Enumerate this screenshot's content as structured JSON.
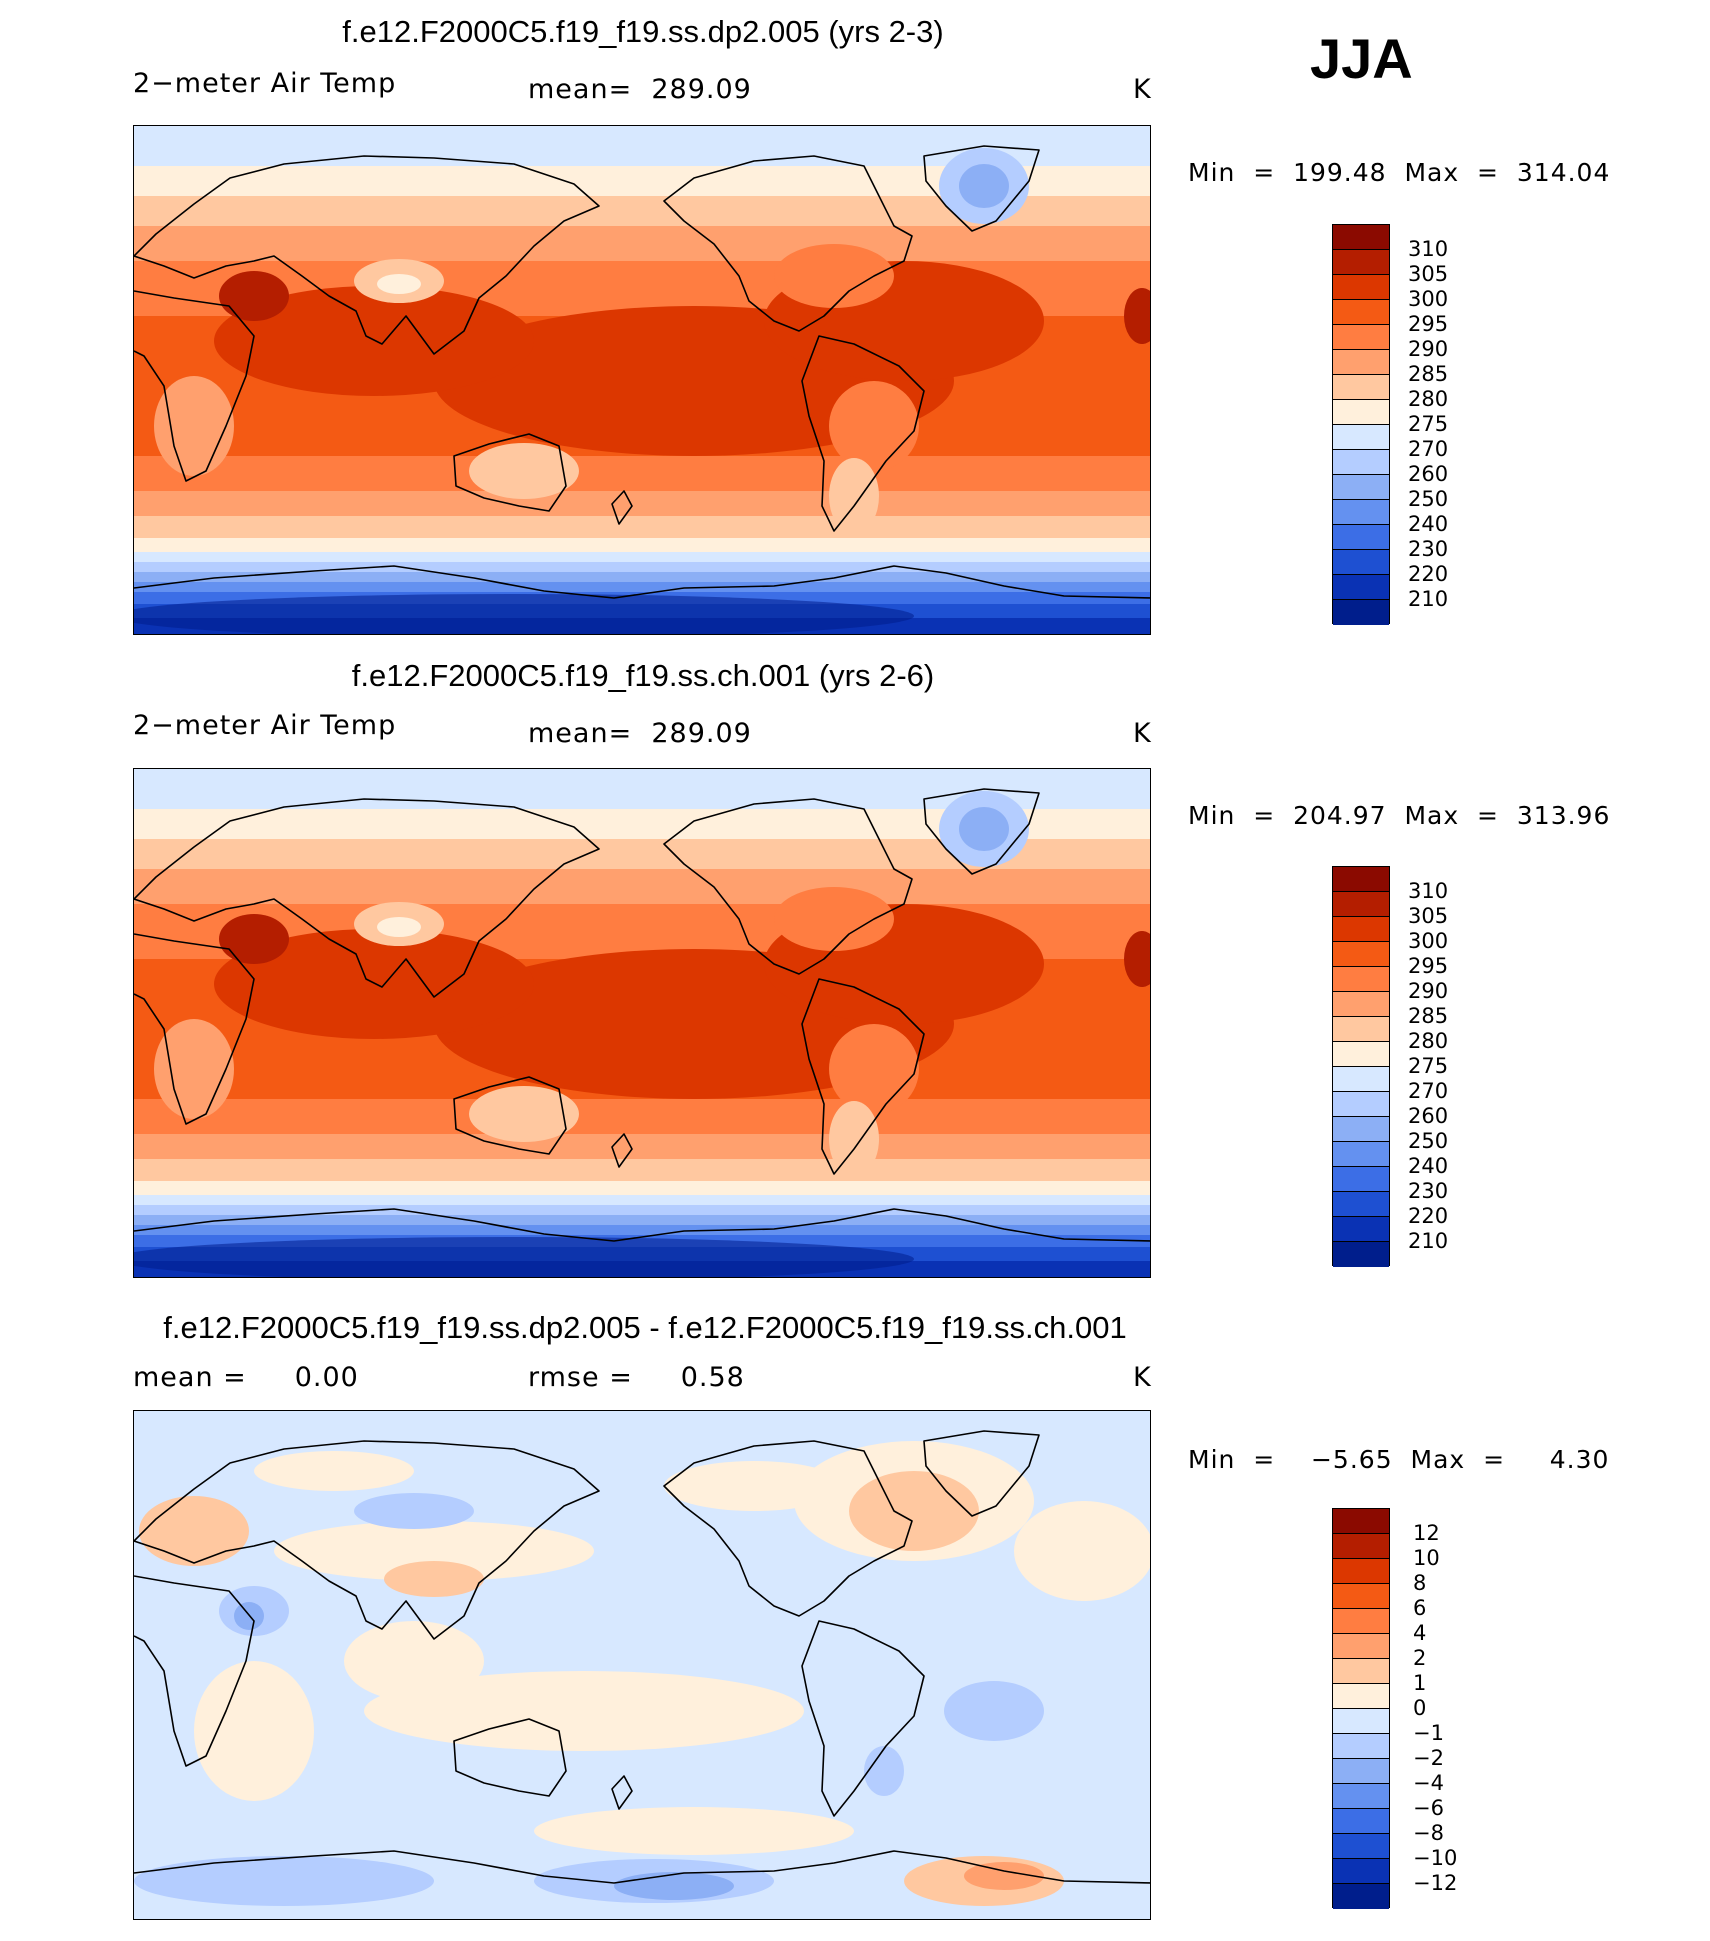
{
  "season": "JJA",
  "panels": [
    {
      "title": "f.e12.F2000C5.f19_f19.ss.dp2.005 (yrs 2-3)",
      "left_label": "2−meter Air Temp",
      "center_label": "mean=  289.09",
      "unit": "K",
      "stats": "Min  =  199.48  Max  =  314.04",
      "colorbar": {
        "labels": [
          "310",
          "305",
          "300",
          "295",
          "290",
          "285",
          "280",
          "275",
          "270",
          "260",
          "250",
          "240",
          "230",
          "220",
          "210"
        ],
        "colors": [
          "#8b0a00",
          "#b41e00",
          "#dc3700",
          "#f45a14",
          "#ff7d41",
          "#ffa06e",
          "#ffc8a0",
          "#fff0dc",
          "#d7e8ff",
          "#b4cdff",
          "#8caff5",
          "#6491f0",
          "#3c6ee6",
          "#1e50d2",
          "#0a32b4",
          "#001e8c"
        ]
      },
      "map": {
        "field": "2-meter air temperature",
        "style": "warm"
      }
    },
    {
      "title": "f.e12.F2000C5.f19_f19.ss.ch.001 (yrs 2-6)",
      "left_label": "2−meter Air Temp",
      "center_label": "mean=  289.09",
      "unit": "K",
      "stats": "Min  =  204.97  Max  =  313.96",
      "colorbar": {
        "labels": [
          "310",
          "305",
          "300",
          "295",
          "290",
          "285",
          "280",
          "275",
          "270",
          "260",
          "250",
          "240",
          "230",
          "220",
          "210"
        ],
        "colors": [
          "#8b0a00",
          "#b41e00",
          "#dc3700",
          "#f45a14",
          "#ff7d41",
          "#ffa06e",
          "#ffc8a0",
          "#fff0dc",
          "#d7e8ff",
          "#b4cdff",
          "#8caff5",
          "#6491f0",
          "#3c6ee6",
          "#1e50d2",
          "#0a32b4",
          "#001e8c"
        ]
      },
      "map": {
        "field": "2-meter air temperature",
        "style": "warm"
      }
    },
    {
      "title": "f.e12.F2000C5.f19_f19.ss.dp2.005 - f.e12.F2000C5.f19_f19.ss.ch.001",
      "left_label": "mean =     0.00",
      "center_label": "rmse =     0.58",
      "unit": "K",
      "stats": "Min  =    −5.65  Max  =     4.30",
      "colorbar": {
        "labels": [
          "12",
          "10",
          "8",
          "6",
          "4",
          "2",
          "1",
          "0",
          "−1",
          "−2",
          "−4",
          "−6",
          "−8",
          "−10",
          "−12"
        ],
        "colors": [
          "#8b0a00",
          "#b41e00",
          "#dc3700",
          "#f45a14",
          "#ff7d41",
          "#ffa06e",
          "#ffc8a0",
          "#fff0dc",
          "#d7e8ff",
          "#b4cdff",
          "#8caff5",
          "#6491f0",
          "#3c6ee6",
          "#1e50d2",
          "#0a32b4",
          "#001e8c"
        ]
      },
      "map": {
        "field": "difference",
        "style": "diff"
      }
    }
  ]
}
